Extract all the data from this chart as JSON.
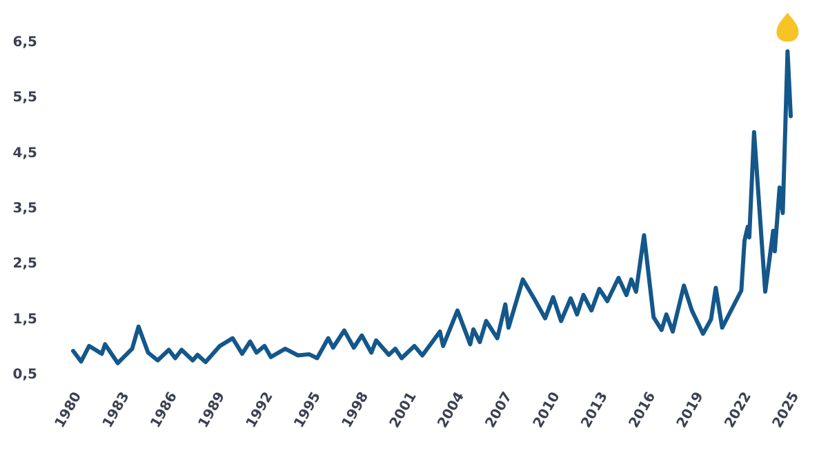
{
  "chart_data": {
    "type": "line",
    "xlim": [
      1980,
      2025
    ],
    "xticks": [
      1980,
      1983,
      1986,
      1989,
      1992,
      1995,
      1998,
      2001,
      2004,
      2007,
      2010,
      2013,
      2016,
      2019,
      2022,
      2025
    ],
    "ylim": [
      0.5,
      6.5
    ],
    "yticks": [
      {
        "value": 0.5,
        "label": "0,5"
      },
      {
        "value": 1.5,
        "label": "1,5"
      },
      {
        "value": 2.5,
        "label": "2,5"
      },
      {
        "value": 3.5,
        "label": "3,5"
      },
      {
        "value": 4.5,
        "label": "4,5"
      },
      {
        "value": 5.5,
        "label": "5,5"
      },
      {
        "value": 6.5,
        "label": "6,5"
      }
    ],
    "grid": false,
    "marker": "none",
    "line_style": "solid",
    "series": [
      {
        "color": "#14578a",
        "x": [
          1980.0,
          1980.5,
          1981.0,
          1981.8,
          1982.0,
          1982.8,
          1983.7,
          1984.1,
          1984.7,
          1985.3,
          1986.0,
          1986.4,
          1986.8,
          1987.5,
          1987.8,
          1988.3,
          1989.2,
          1990.0,
          1990.6,
          1991.1,
          1991.5,
          1992.0,
          1992.4,
          1993.3,
          1994.1,
          1994.8,
          1995.3,
          1996.0,
          1996.3,
          1997.0,
          1997.6,
          1998.1,
          1998.7,
          1999.0,
          1999.8,
          2000.2,
          2000.6,
          2001.4,
          2001.9,
          2003.0,
          2003.2,
          2004.1,
          2004.9,
          2005.1,
          2005.5,
          2005.9,
          2006.6,
          2007.1,
          2007.3,
          2008.2,
          2008.9,
          2009.6,
          2010.1,
          2010.6,
          2011.2,
          2011.6,
          2012.0,
          2012.5,
          2013.0,
          2013.5,
          2014.2,
          2014.7,
          2015.0,
          2015.3,
          2015.8,
          2016.4,
          2016.9,
          2017.2,
          2017.6,
          2018.3,
          2018.8,
          2019.5,
          2020.0,
          2020.3,
          2020.7,
          2021.9,
          2022.1,
          2022.3,
          2022.4,
          2022.7,
          2023.4,
          2023.9,
          2024.0,
          2024.3,
          2024.5,
          2024.8,
          2025.0
        ],
        "values": [
          0.91,
          0.72,
          1.0,
          0.86,
          1.03,
          0.69,
          0.95,
          1.35,
          0.88,
          0.74,
          0.93,
          0.78,
          0.93,
          0.74,
          0.84,
          0.71,
          1.0,
          1.14,
          0.86,
          1.08,
          0.88,
          1.0,
          0.8,
          0.95,
          0.83,
          0.85,
          0.78,
          1.14,
          0.97,
          1.28,
          0.97,
          1.19,
          0.88,
          1.1,
          0.84,
          0.95,
          0.78,
          1.0,
          0.83,
          1.26,
          1.0,
          1.64,
          1.03,
          1.3,
          1.07,
          1.45,
          1.14,
          1.75,
          1.33,
          2.2,
          1.86,
          1.5,
          1.88,
          1.45,
          1.86,
          1.57,
          1.92,
          1.64,
          2.03,
          1.81,
          2.23,
          1.92,
          2.2,
          1.98,
          3.0,
          1.52,
          1.29,
          1.57,
          1.26,
          2.09,
          1.64,
          1.22,
          1.48,
          2.05,
          1.33,
          2.0,
          2.9,
          3.15,
          2.96,
          4.86,
          1.98,
          3.08,
          2.71,
          3.86,
          3.4,
          6.32,
          5.15
        ]
      }
    ]
  }
}
